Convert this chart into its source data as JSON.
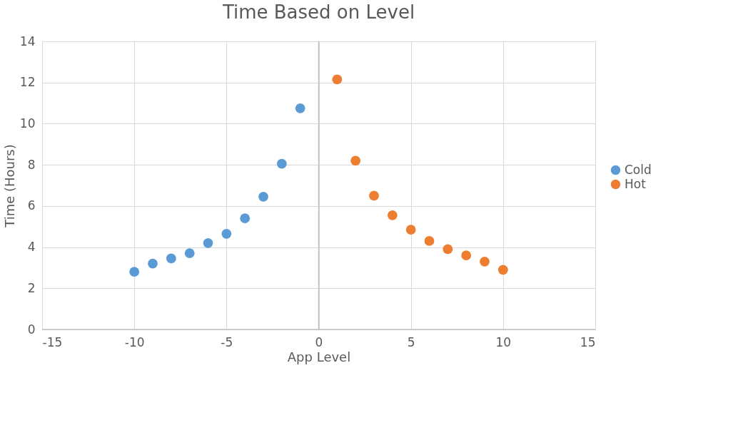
{
  "chart_data": {
    "type": "scatter",
    "title": "Time Based on Level",
    "xlabel": "App Level",
    "ylabel": "Time (Hours)",
    "xlim": [
      -15,
      15
    ],
    "xticks": [
      -15,
      -10,
      -5,
      0,
      5,
      10,
      15
    ],
    "ylim": [
      0,
      14
    ],
    "yticks": [
      0,
      2,
      4,
      6,
      8,
      10,
      12,
      14
    ],
    "grid": true,
    "legend": "right",
    "marker": "circle",
    "series": [
      {
        "name": "Cold",
        "color": "#5b9bd5",
        "x": [
          -10,
          -9,
          -8,
          -7,
          -6,
          -5,
          -4,
          -3,
          -2,
          -1
        ],
        "values": [
          2.8,
          3.2,
          3.45,
          3.7,
          4.2,
          4.65,
          5.4,
          6.45,
          8.05,
          10.75
        ]
      },
      {
        "name": "Hot",
        "color": "#ed7d31",
        "x": [
          1,
          2,
          3,
          4,
          5,
          6,
          7,
          8,
          9,
          10
        ],
        "values": [
          12.15,
          8.2,
          6.5,
          5.55,
          4.85,
          4.3,
          3.9,
          3.6,
          3.3,
          2.9
        ]
      }
    ]
  }
}
